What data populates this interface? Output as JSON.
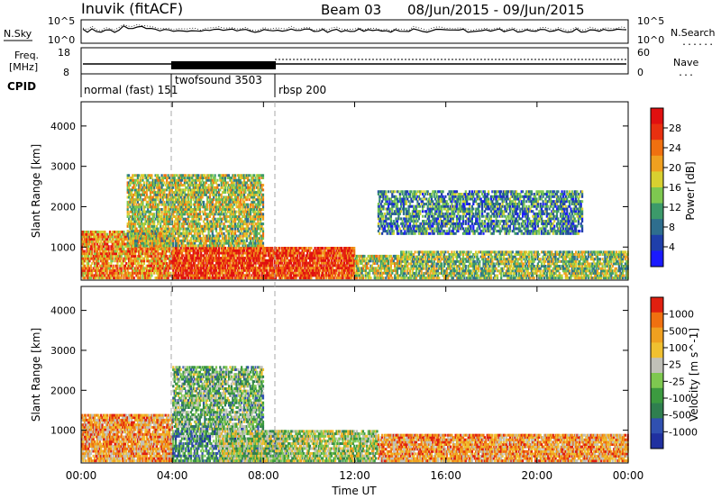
{
  "header": {
    "title": "Inuvik (fitACF)",
    "beam": "Beam 03",
    "date_range": "08/Jun/2015 - 09/Jun/2015"
  },
  "nsky_panel": {
    "left_label": "N.Sky",
    "right_label": "N.Search",
    "left_ticks": [
      "10^5",
      "10^0"
    ],
    "right_ticks": [
      "10^5",
      "10^0"
    ]
  },
  "freq_panel": {
    "left_label_1": "Freq.",
    "left_label_2": "[MHz]",
    "right_label": "Nave",
    "left_ticks": [
      "18",
      "8"
    ],
    "right_ticks": [
      "60",
      "0"
    ]
  },
  "cpid": {
    "label": "CPID",
    "segments": [
      {
        "label": "normal (fast) 151",
        "start_hour": 0
      },
      {
        "label": "twofsound 3503",
        "start_hour": 4
      },
      {
        "label": "rbsp 200",
        "start_hour": 8.5
      }
    ]
  },
  "chart_data": [
    {
      "type": "heatmap",
      "name": "power-panel",
      "ylabel": "Slant Range [km]",
      "ylim": [
        180,
        4600
      ],
      "yticks": [
        "1000",
        "2000",
        "3000",
        "4000"
      ],
      "xlim": [
        0,
        24
      ],
      "colorbar_label": "Power [dB]",
      "colorbar_ticks": [
        "4",
        "8",
        "12",
        "16",
        "20",
        "24",
        "28"
      ],
      "colors": [
        "#1a1aff",
        "#1f3faa",
        "#2e6e8e",
        "#3c9a6a",
        "#7ec850",
        "#d8d030",
        "#f0a020",
        "#f07010",
        "#e83010",
        "#e01010"
      ],
      "blobs": [
        {
          "t0": 0,
          "t1": 4,
          "r0": 200,
          "r1": 1400,
          "level": 0.7
        },
        {
          "t0": 4,
          "t1": 12,
          "r0": 200,
          "r1": 1000,
          "level": 0.85
        },
        {
          "t0": 12,
          "t1": 14,
          "r0": 200,
          "r1": 800,
          "level": 0.5
        },
        {
          "t0": 14,
          "t1": 24,
          "r0": 200,
          "r1": 900,
          "level": 0.45
        },
        {
          "t0": 2,
          "t1": 8,
          "r0": 1000,
          "r1": 2800,
          "level": 0.5
        },
        {
          "t0": 13,
          "t1": 22,
          "r0": 1300,
          "r1": 2400,
          "level": 0.3
        }
      ]
    },
    {
      "type": "heatmap",
      "name": "velocity-panel",
      "ylabel": "Slant Range [km]",
      "ylim": [
        180,
        4600
      ],
      "yticks": [
        "1000",
        "2000",
        "3000",
        "4000"
      ],
      "xlim": [
        0,
        24
      ],
      "colorbar_label": "Velocity [m s^-1]",
      "colorbar_ticks": [
        "1000",
        "500",
        "100",
        "25",
        "-25",
        "-100",
        "-500",
        "-1000"
      ],
      "colors": [
        "#2030a0",
        "#3050b0",
        "#2f7f4f",
        "#3c9a40",
        "#7ec850",
        "#c0c0b8",
        "#f0c030",
        "#f0a020",
        "#f07010",
        "#e02010"
      ],
      "blobs": [
        {
          "t0": 0,
          "t1": 4,
          "r0": 200,
          "r1": 1400,
          "level": 0.75
        },
        {
          "t0": 4,
          "t1": 9,
          "r0": 200,
          "r1": 1000,
          "level": 0.3
        },
        {
          "t0": 6,
          "t1": 13,
          "r0": 200,
          "r1": 1000,
          "level": 0.5
        },
        {
          "t0": 13,
          "t1": 24,
          "r0": 200,
          "r1": 900,
          "level": 0.75
        },
        {
          "t0": 4,
          "t1": 8,
          "r0": 1000,
          "r1": 2600,
          "level": 0.4
        }
      ]
    }
  ],
  "x_axis": {
    "label": "Time UT",
    "ticks": [
      "00:00",
      "04:00",
      "08:00",
      "12:00",
      "16:00",
      "20:00",
      "00:00"
    ]
  },
  "legend_dotted_right": "......"
}
